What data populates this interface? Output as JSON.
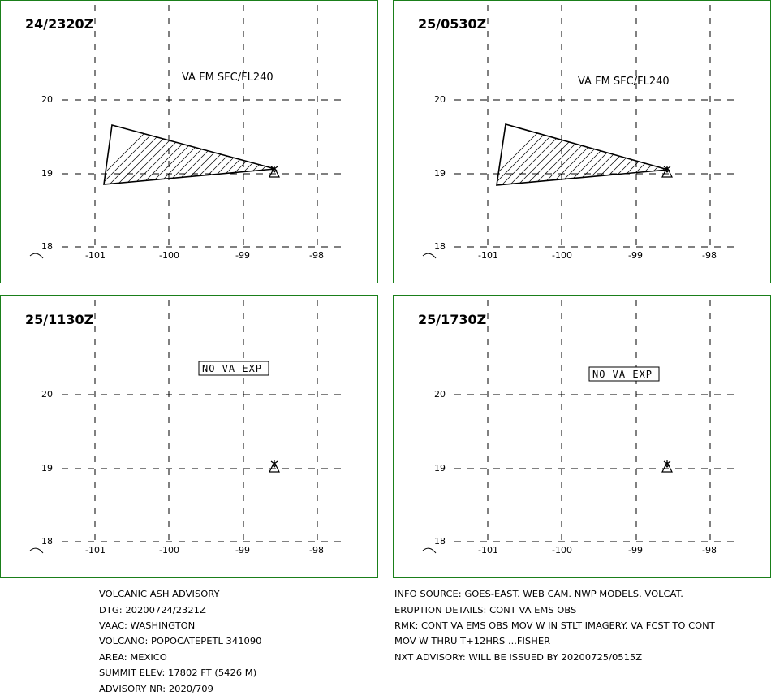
{
  "panels": [
    {
      "timestamp": "24/2320Z",
      "label": "VA FM SFC/FL240",
      "ash": true,
      "lat_labels": [
        "20",
        "19",
        "18"
      ],
      "lon_labels": [
        "-101",
        "-100",
        "-99",
        "-98"
      ]
    },
    {
      "timestamp": "25/0530Z",
      "label": "VA FM SFC/FL240",
      "ash": true,
      "lat_labels": [
        "20",
        "19",
        "18"
      ],
      "lon_labels": [
        "-101",
        "-100",
        "-99",
        "-98"
      ]
    },
    {
      "timestamp": "25/1130Z",
      "label": "NO VA EXP",
      "ash": false,
      "lat_labels": [
        "20",
        "19",
        "18"
      ],
      "lon_labels": [
        "-101",
        "-100",
        "-99",
        "-98"
      ]
    },
    {
      "timestamp": "25/1730Z",
      "label": "NO VA EXP",
      "ash": false,
      "lat_labels": [
        "20",
        "19",
        "18"
      ],
      "lon_labels": [
        "-101",
        "-100",
        "-99",
        "-98"
      ]
    }
  ],
  "advisory": {
    "left_lines": [
      "VOLCANIC ASH ADVISORY",
      "DTG: 20200724/2321Z",
      "VAAC: WASHINGTON",
      "VOLCANO: POPOCATEPETL 341090",
      "AREA: MEXICO",
      "SUMMIT ELEV: 17802 FT (5426 M)",
      "ADVISORY NR: 2020/709"
    ],
    "right_lines": [
      "INFO SOURCE: GOES-EAST. WEB CAM. NWP MODELS. VOLCAT.",
      "ERUPTION DETAILS: CONT VA EMS OBS",
      "RMK: CONT VA EMS OBS MOV W IN STLT IMAGERY. VA FCST TO CONT",
      "MOV W THRU T+12HRS ...FISHER",
      "NXT ADVISORY: WILL BE ISSUED BY 20200725/0515Z"
    ]
  }
}
